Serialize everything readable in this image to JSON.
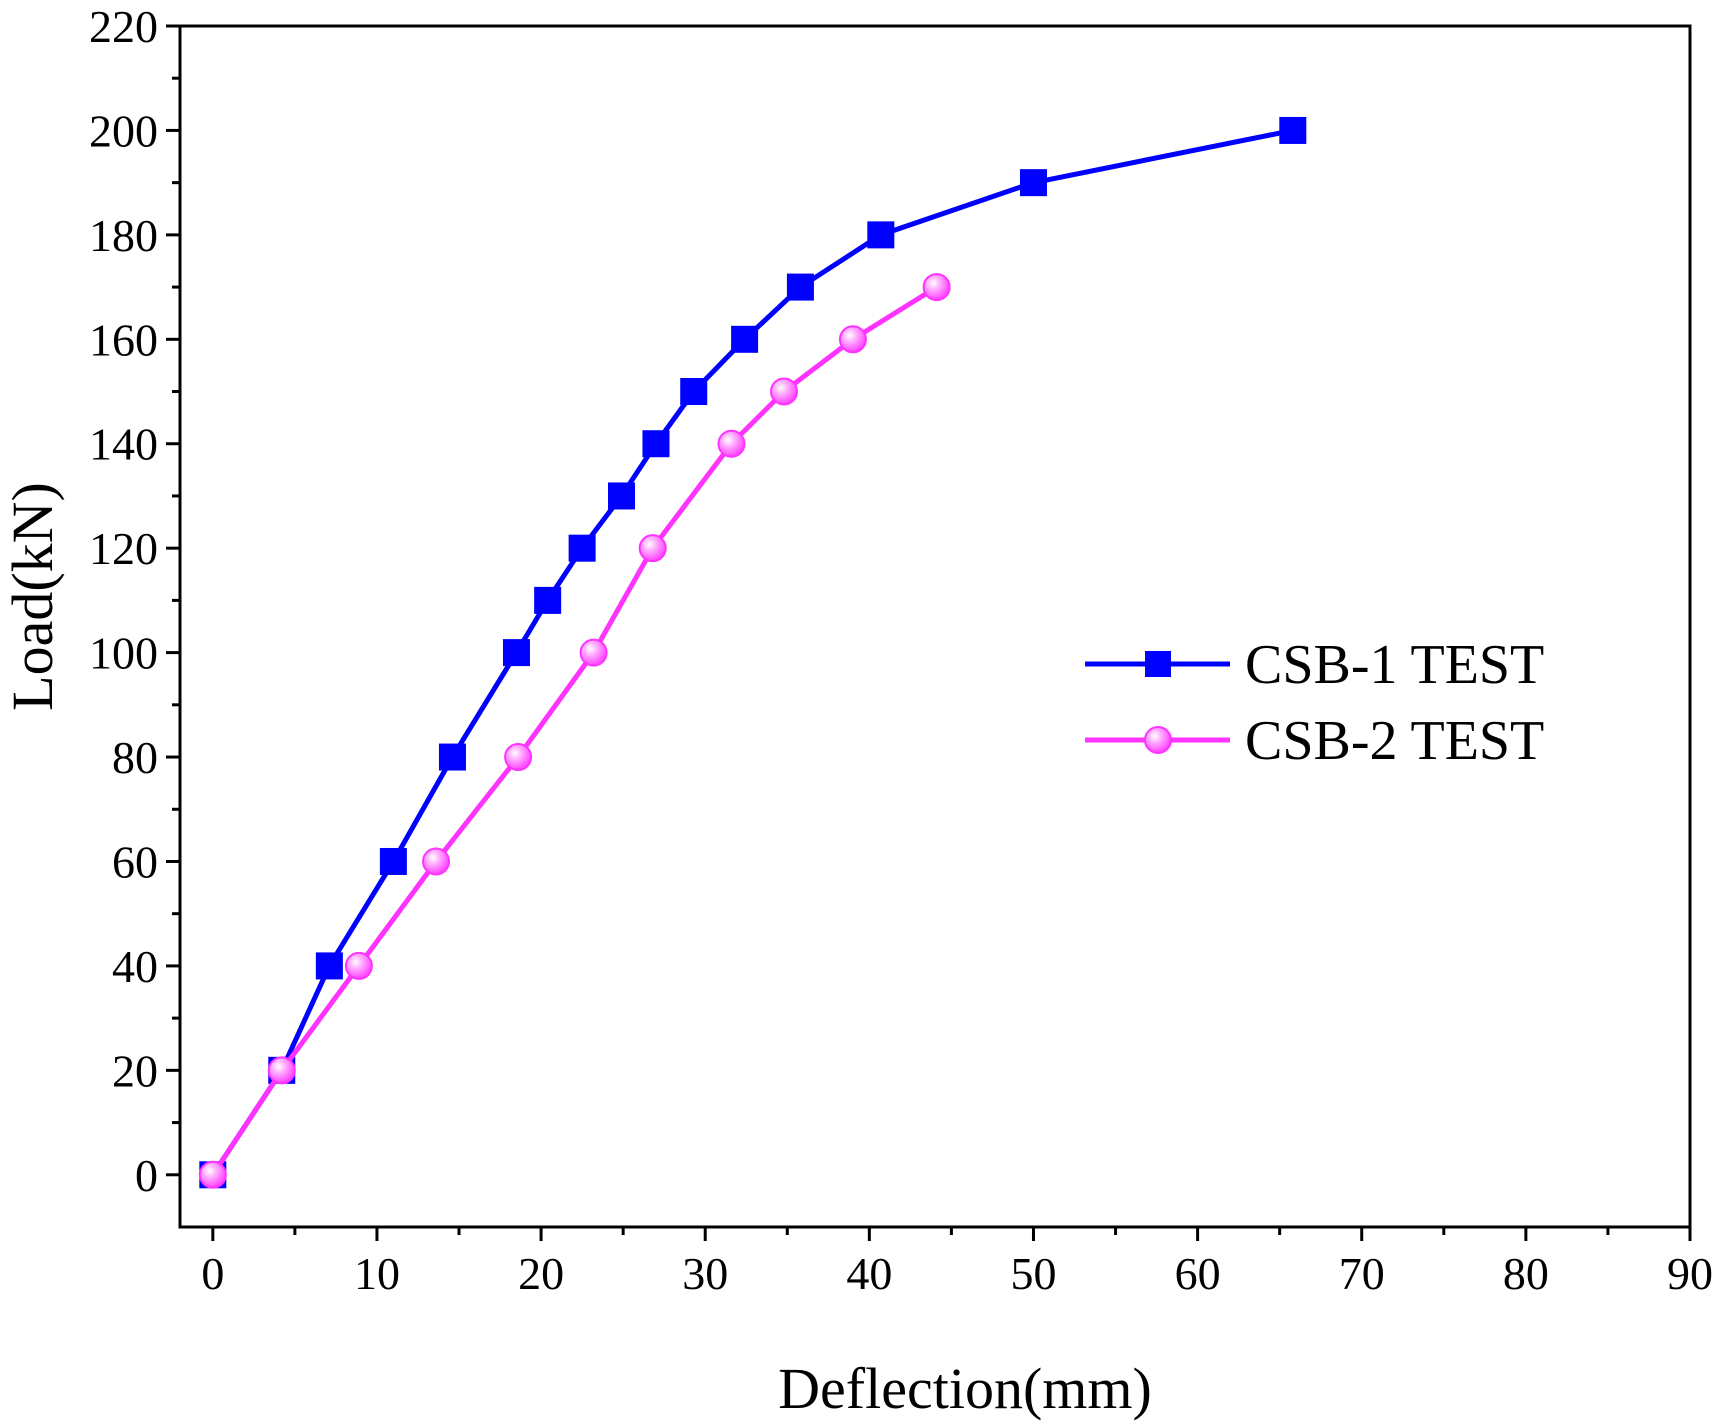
{
  "colors": {
    "series1": "#0000ff",
    "series2": "#ff33ff",
    "axis": "#000000",
    "background": "#ffffff"
  },
  "chart_data": {
    "type": "line",
    "title": "",
    "xlabel": "Deflection(mm)",
    "ylabel": "Load(kN)",
    "xlim": [
      -2,
      90
    ],
    "ylim": [
      -10,
      220
    ],
    "xticks": [
      0,
      10,
      20,
      30,
      40,
      50,
      60,
      70,
      80,
      90
    ],
    "yticks": [
      0,
      20,
      40,
      60,
      80,
      100,
      120,
      140,
      160,
      180,
      200,
      220
    ],
    "grid": false,
    "legend_position": "center-right",
    "series": [
      {
        "name": "CSB-1 TEST",
        "marker": "square",
        "color": "#0000ff",
        "x": [
          0,
          4.2,
          7.1,
          11,
          14.6,
          18.5,
          20.4,
          22.5,
          24.9,
          27,
          29.3,
          32.4,
          35.8,
          40.7,
          50,
          65.8
        ],
        "y": [
          0,
          20,
          40,
          60,
          80,
          100,
          110,
          120,
          130,
          140,
          150,
          160,
          170,
          180,
          190,
          200
        ]
      },
      {
        "name": "CSB-2 TEST",
        "marker": "circle",
        "color": "#ff33ff",
        "x": [
          0,
          4.2,
          8.9,
          13.6,
          18.6,
          23.2,
          26.8,
          31.6,
          34.8,
          39,
          44.1
        ],
        "y": [
          0,
          20,
          40,
          60,
          80,
          100,
          120,
          140,
          150,
          160,
          170
        ]
      }
    ]
  }
}
